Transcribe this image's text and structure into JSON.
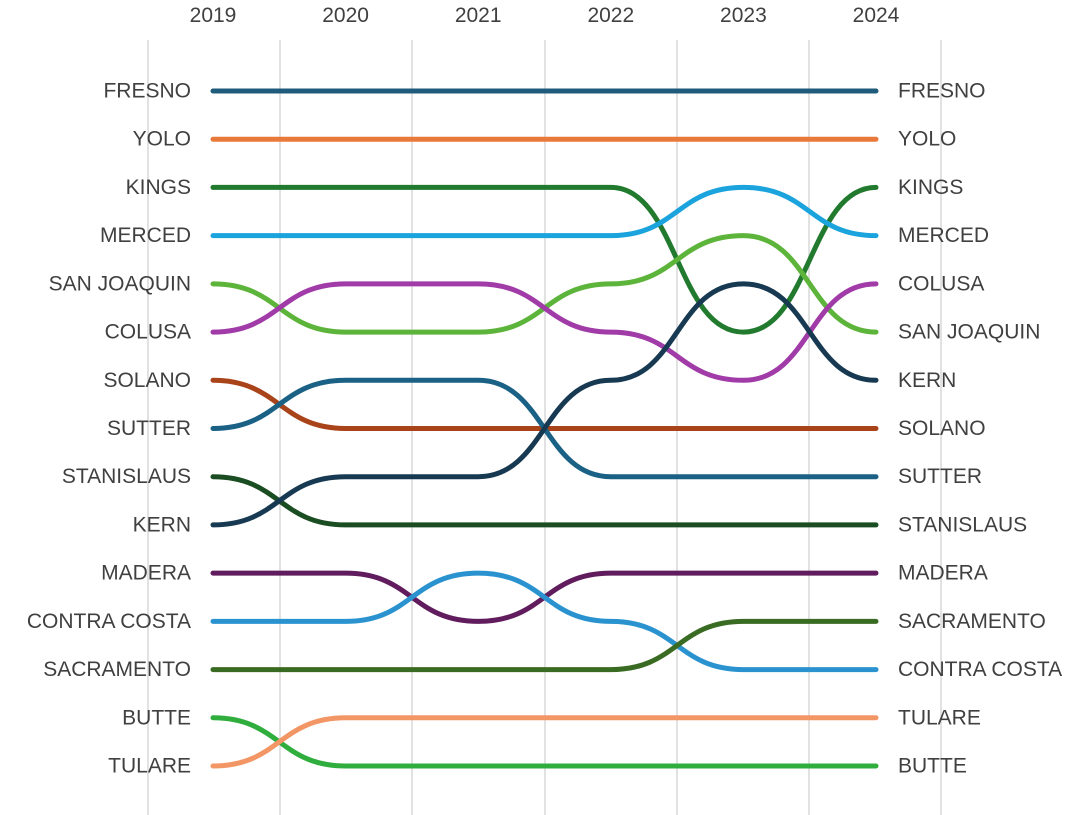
{
  "chart_data": {
    "type": "line",
    "subtype": "bump",
    "x": [
      "2019",
      "2020",
      "2021",
      "2022",
      "2023",
      "2024"
    ],
    "y_scale": "rank, 1 at top",
    "ylim": [
      1,
      15
    ],
    "grid": "vertical",
    "left_labels": [
      "FRESNO",
      "YOLO",
      "KINGS",
      "MERCED",
      "SAN JOAQUIN",
      "COLUSA",
      "SOLANO",
      "SUTTER",
      "STANISLAUS",
      "KERN",
      "MADERA",
      "CONTRA COSTA",
      "SACRAMENTO",
      "BUTTE",
      "TULARE"
    ],
    "right_labels": [
      "FRESNO",
      "YOLO",
      "KINGS",
      "MERCED",
      "COLUSA",
      "SAN JOAQUIN",
      "KERN",
      "SOLANO",
      "SUTTER",
      "STANISLAUS",
      "MADERA",
      "SACRAMENTO",
      "CONTRA COSTA",
      "TULARE",
      "BUTTE"
    ],
    "series": [
      {
        "name": "FRESNO",
        "color": "#1f5b7a",
        "values": [
          1,
          1,
          1,
          1,
          1,
          1
        ]
      },
      {
        "name": "YOLO",
        "color": "#e8793a",
        "values": [
          2,
          2,
          2,
          2,
          2,
          2
        ]
      },
      {
        "name": "KINGS",
        "color": "#217a2e",
        "values": [
          3,
          3,
          3,
          3,
          6,
          3
        ]
      },
      {
        "name": "MERCED",
        "color": "#1aa3dc",
        "values": [
          4,
          4,
          4,
          4,
          3,
          4
        ]
      },
      {
        "name": "SAN JOAQUIN",
        "color": "#5db43a",
        "values": [
          5,
          6,
          6,
          5,
          4,
          6
        ]
      },
      {
        "name": "COLUSA",
        "color": "#a03ba8",
        "values": [
          6,
          5,
          5,
          6,
          7,
          5
        ]
      },
      {
        "name": "SOLANO",
        "color": "#a9431a",
        "values": [
          7,
          8,
          8,
          8,
          8,
          8
        ]
      },
      {
        "name": "SUTTER",
        "color": "#1a6185",
        "values": [
          8,
          7,
          7,
          9,
          9,
          9
        ]
      },
      {
        "name": "STANISLAUS",
        "color": "#1b4d22",
        "values": [
          9,
          10,
          10,
          10,
          10,
          10
        ]
      },
      {
        "name": "KERN",
        "color": "#173a52",
        "values": [
          10,
          9,
          9,
          7,
          5,
          7
        ]
      },
      {
        "name": "MADERA",
        "color": "#611c5e",
        "values": [
          11,
          11,
          12,
          11,
          11,
          11
        ]
      },
      {
        "name": "CONTRA COSTA",
        "color": "#2a93cf",
        "values": [
          12,
          12,
          11,
          12,
          13,
          13
        ]
      },
      {
        "name": "SACRAMENTO",
        "color": "#3a6b22",
        "values": [
          13,
          13,
          13,
          13,
          12,
          12
        ]
      },
      {
        "name": "BUTTE",
        "color": "#2fad3d",
        "values": [
          14,
          15,
          15,
          15,
          15,
          15
        ]
      },
      {
        "name": "TULARE",
        "color": "#f29665",
        "values": [
          15,
          14,
          14,
          14,
          14,
          14
        ]
      }
    ]
  }
}
